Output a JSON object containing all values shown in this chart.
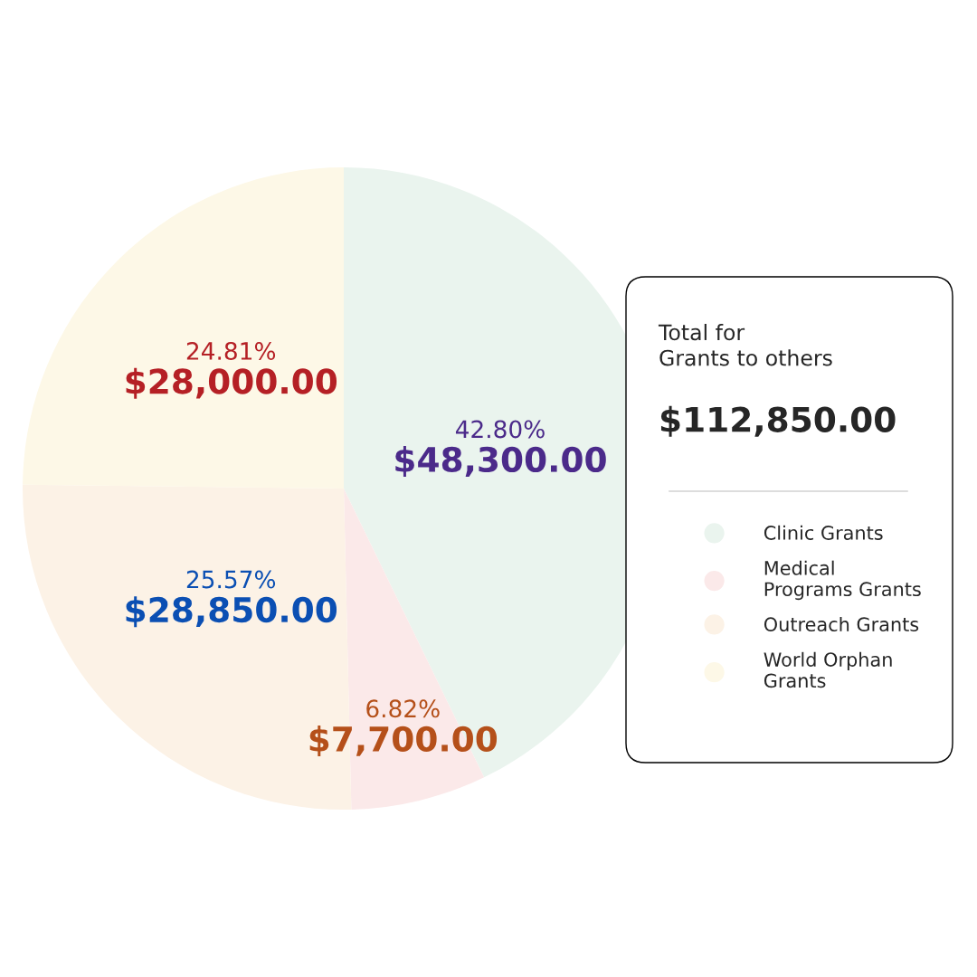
{
  "chart_data": {
    "type": "pie",
    "categories": [
      "Clinic Grants",
      "Medical\nPrograms Grants",
      "Outreach Grants",
      "World Orphan\nGrants"
    ],
    "values": [
      48300,
      7700,
      28850,
      28000
    ],
    "colors": [
      "#eaf4ee",
      "#fbe9e9",
      "#fcf2e6",
      "#fdf8e7"
    ],
    "value_labels": [
      "42.80%\n$48,300.00",
      "6.82%\n$7,700.00",
      "25.57%\n$28,850.00",
      "24.81%\n$28,000.00"
    ],
    "annotations": [
      "Total for\nGrants to others",
      "$112,850.00"
    ],
    "legend": "right"
  }
}
